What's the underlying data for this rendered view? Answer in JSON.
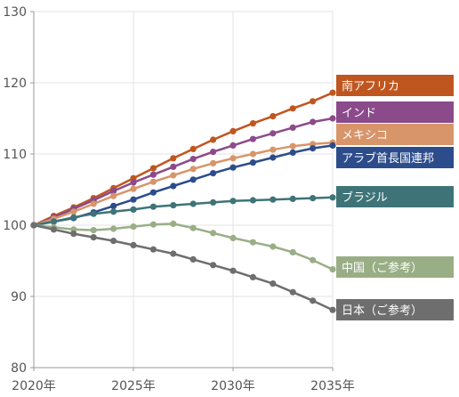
{
  "chart_data": {
    "type": "line",
    "title": "",
    "xlabel": "",
    "ylabel": "",
    "ylim": [
      80,
      130
    ],
    "yticks": [
      80,
      90,
      100,
      110,
      120,
      130
    ],
    "xlim": [
      2020,
      2035
    ],
    "xticks": [
      {
        "year": 2020,
        "label": "2020年"
      },
      {
        "year": 2025,
        "label": "2025年"
      },
      {
        "year": 2030,
        "label": "2030年"
      },
      {
        "year": 2035,
        "label": "2035年"
      }
    ],
    "grid": true,
    "legend": "right-side labels",
    "x": [
      2020,
      2021,
      2022,
      2023,
      2024,
      2025,
      2026,
      2027,
      2028,
      2029,
      2030,
      2031,
      2032,
      2033,
      2034,
      2035
    ],
    "series": [
      {
        "name": "南アフリカ",
        "color": "#c0561f",
        "values": [
          100,
          101.3,
          102.5,
          103.8,
          105.2,
          106.6,
          108.0,
          109.4,
          110.7,
          112.0,
          113.2,
          114.3,
          115.3,
          116.4,
          117.4,
          118.6
        ]
      },
      {
        "name": "インド",
        "color": "#8b4b8b",
        "values": [
          100,
          101.1,
          102.3,
          103.5,
          104.8,
          106.0,
          107.1,
          108.2,
          109.3,
          110.3,
          111.2,
          112.1,
          112.9,
          113.7,
          114.5,
          115.0
        ]
      },
      {
        "name": "メキシコ",
        "color": "#d8956a",
        "values": [
          100,
          100.9,
          101.9,
          103.0,
          104.1,
          105.1,
          106.1,
          107.0,
          107.9,
          108.7,
          109.4,
          110.0,
          110.6,
          111.1,
          111.4,
          111.6
        ]
      },
      {
        "name": "アラブ首長国連邦",
        "color": "#2c4c8c",
        "values": [
          100,
          100.5,
          101.0,
          101.8,
          102.7,
          103.6,
          104.6,
          105.5,
          106.4,
          107.3,
          108.1,
          108.8,
          109.5,
          110.2,
          110.8,
          111.2
        ]
      },
      {
        "name": "ブラジル",
        "color": "#3e7478",
        "values": [
          100,
          100.5,
          101.1,
          101.6,
          101.9,
          102.2,
          102.6,
          102.8,
          103.0,
          103.2,
          103.4,
          103.5,
          103.6,
          103.7,
          103.8,
          103.9
        ]
      },
      {
        "name": "中国（ご参考）",
        "color": "#9aae86",
        "values": [
          100,
          99.7,
          99.4,
          99.3,
          99.5,
          99.8,
          100.1,
          100.2,
          99.6,
          98.9,
          98.2,
          97.6,
          97.0,
          96.2,
          95.1,
          93.8
        ]
      },
      {
        "name": "日本（ご参考）",
        "color": "#6e6e6e",
        "values": [
          100,
          99.4,
          98.8,
          98.3,
          97.8,
          97.2,
          96.6,
          96.0,
          95.2,
          94.4,
          93.6,
          92.7,
          91.8,
          90.6,
          89.4,
          88.1
        ]
      }
    ],
    "label_order": [
      "南アフリカ",
      "インド",
      "メキシコ",
      "アラブ首長国連邦",
      "ブラジル",
      "中国（ご参考）",
      "日本（ご参考）"
    ]
  }
}
